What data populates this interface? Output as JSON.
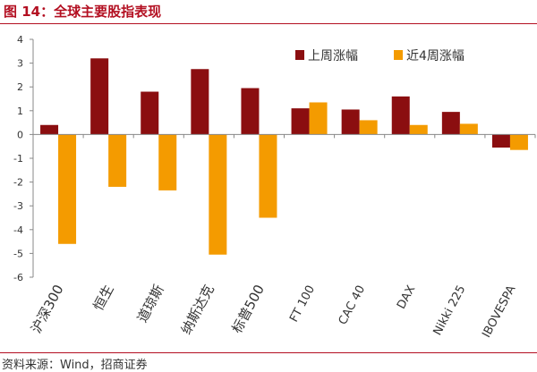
{
  "header": {
    "title": "图 14：全球主要股指表现"
  },
  "footer": {
    "source": "资料来源：Wind，招商证券"
  },
  "colors": {
    "accent": "#b30f21",
    "series1": "#8b0e10",
    "series2": "#f49b00",
    "axis": "#888888",
    "text": "#333333"
  },
  "chart_data": {
    "type": "bar",
    "title": "",
    "xlabel": "",
    "ylabel": "",
    "ylim": [
      -6,
      4
    ],
    "yticks": [
      4,
      3,
      2,
      1,
      0,
      -1,
      -2,
      -3,
      -4,
      -5,
      -6
    ],
    "ytick_labels": [
      "4",
      "3",
      "2",
      "1",
      "0",
      "-1",
      "-2",
      "-3",
      "-4",
      "-5",
      "-6"
    ],
    "grid": false,
    "legend_position": "top-right",
    "categories": [
      "沪深300",
      "恒生",
      "道琼斯",
      "纳斯达克",
      "标普500",
      "FT 100",
      "CAC 40",
      "DAX",
      "Nikki 225",
      "IBOVESPA"
    ],
    "series": [
      {
        "name": "上周涨幅",
        "color": "#8b0e10",
        "values": [
          0.4,
          3.2,
          1.8,
          2.75,
          1.95,
          1.1,
          1.05,
          1.6,
          0.95,
          -0.55
        ]
      },
      {
        "name": "近4周涨幅",
        "color": "#f49b00",
        "values": [
          -4.6,
          -2.2,
          -2.35,
          -5.05,
          -3.5,
          1.35,
          0.6,
          0.4,
          0.45,
          -0.65
        ]
      }
    ]
  }
}
